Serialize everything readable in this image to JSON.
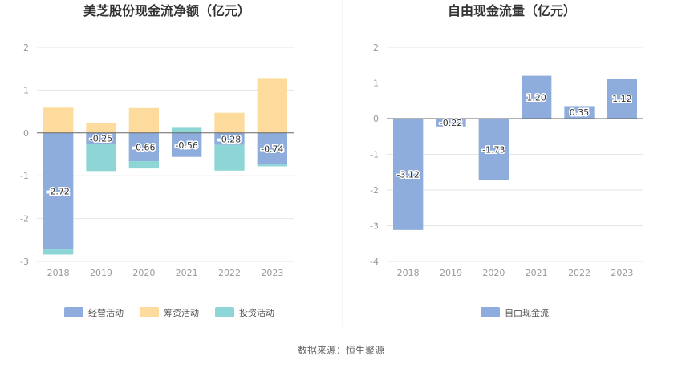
{
  "chart_data": [
    {
      "type": "bar",
      "stacked": true,
      "title": "美芝股份现金流净额（亿元）",
      "categories": [
        "2018",
        "2019",
        "2020",
        "2021",
        "2022",
        "2023"
      ],
      "ylim": [
        -3,
        2
      ],
      "yticks": [
        "2",
        "1",
        "0",
        "-1",
        "-2",
        "-3"
      ],
      "grid": true,
      "legend_position": "bottom",
      "series": [
        {
          "name": "经营活动",
          "color": "#8eaddc",
          "values": [
            -2.72,
            -0.25,
            -0.66,
            -0.56,
            -0.28,
            -0.74
          ]
        },
        {
          "name": "筹资活动",
          "color": "#fddb9c",
          "values": [
            0.59,
            0.22,
            0.58,
            0.0,
            0.47,
            1.28
          ]
        },
        {
          "name": "投资活动",
          "color": "#8ed6d6",
          "values": [
            -0.12,
            -0.64,
            -0.17,
            0.12,
            -0.6,
            -0.04
          ]
        }
      ],
      "data_labels": [
        "-2.72",
        "-0.25",
        "-0.66",
        "-0.56",
        "-0.28",
        "-0.74"
      ]
    },
    {
      "type": "bar",
      "title": "自由现金流量（亿元）",
      "categories": [
        "2018",
        "2019",
        "2020",
        "2021",
        "2022",
        "2023"
      ],
      "ylim": [
        -4,
        2
      ],
      "yticks": [
        "2",
        "1",
        "0",
        "-1",
        "-2",
        "-3",
        "-4"
      ],
      "grid": true,
      "legend_position": "bottom",
      "series": [
        {
          "name": "自由现金流",
          "color": "#8eaddc",
          "values": [
            -3.12,
            -0.22,
            -1.73,
            1.2,
            0.35,
            1.12
          ]
        }
      ],
      "data_labels": [
        "-3.12",
        "-0.22",
        "-1.73",
        "1.20",
        "0.35",
        "1.12"
      ]
    }
  ],
  "source": "数据来源：恒生聚源"
}
